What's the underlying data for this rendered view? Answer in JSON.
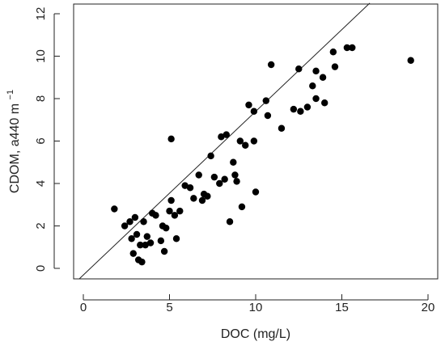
{
  "chart_data": {
    "type": "scatter",
    "title": "",
    "xlabel": "DOC (mg/L)",
    "ylabel_main": "CDOM, a440 m",
    "ylabel_superscript": "−1",
    "xlim": [
      0,
      21
    ],
    "ylim": [
      -0.5,
      12.5
    ],
    "xticks": [
      0,
      5,
      10,
      15,
      20
    ],
    "xtick_labels": [
      "0",
      "5",
      "10",
      "15",
      "20"
    ],
    "yticks": [
      0,
      2,
      4,
      6,
      8,
      10,
      12
    ],
    "ytick_labels": [
      "0",
      "2",
      "4",
      "6",
      "8",
      "10",
      "12"
    ],
    "grid": false,
    "points": [
      [
        1.8,
        2.8
      ],
      [
        2.4,
        2.0
      ],
      [
        2.7,
        2.2
      ],
      [
        2.8,
        1.4
      ],
      [
        2.9,
        0.7
      ],
      [
        3.0,
        2.4
      ],
      [
        3.1,
        1.6
      ],
      [
        3.2,
        0.4
      ],
      [
        3.3,
        1.1
      ],
      [
        3.4,
        0.3
      ],
      [
        3.5,
        2.2
      ],
      [
        3.6,
        1.1
      ],
      [
        3.7,
        1.5
      ],
      [
        3.9,
        1.2
      ],
      [
        4.0,
        2.6
      ],
      [
        4.2,
        2.5
      ],
      [
        4.5,
        1.3
      ],
      [
        4.6,
        2.0
      ],
      [
        4.7,
        0.8
      ],
      [
        4.8,
        1.9
      ],
      [
        5.0,
        2.7
      ],
      [
        5.1,
        3.2
      ],
      [
        5.1,
        6.1
      ],
      [
        5.3,
        2.5
      ],
      [
        5.4,
        1.4
      ],
      [
        5.6,
        2.7
      ],
      [
        5.9,
        3.9
      ],
      [
        6.2,
        3.8
      ],
      [
        6.4,
        3.3
      ],
      [
        6.7,
        4.4
      ],
      [
        6.9,
        3.2
      ],
      [
        7.0,
        3.5
      ],
      [
        7.2,
        3.4
      ],
      [
        7.4,
        5.3
      ],
      [
        7.6,
        4.3
      ],
      [
        7.9,
        4.0
      ],
      [
        8.0,
        6.2
      ],
      [
        8.2,
        4.2
      ],
      [
        8.3,
        6.3
      ],
      [
        8.5,
        2.2
      ],
      [
        8.7,
        5.0
      ],
      [
        8.8,
        4.4
      ],
      [
        8.9,
        4.1
      ],
      [
        9.1,
        6.0
      ],
      [
        9.2,
        2.9
      ],
      [
        9.4,
        5.8
      ],
      [
        9.6,
        7.7
      ],
      [
        9.9,
        6.0
      ],
      [
        9.9,
        7.4
      ],
      [
        10.0,
        3.6
      ],
      [
        10.6,
        7.9
      ],
      [
        10.7,
        7.2
      ],
      [
        10.9,
        9.6
      ],
      [
        11.5,
        6.6
      ],
      [
        12.2,
        7.5
      ],
      [
        12.5,
        9.4
      ],
      [
        12.6,
        7.4
      ],
      [
        13.0,
        7.6
      ],
      [
        13.3,
        8.6
      ],
      [
        13.5,
        9.3
      ],
      [
        13.5,
        8.0
      ],
      [
        13.9,
        9.0
      ],
      [
        14.0,
        7.8
      ],
      [
        14.5,
        10.2
      ],
      [
        14.6,
        9.5
      ],
      [
        15.3,
        10.4
      ],
      [
        15.6,
        10.4
      ],
      [
        19.0,
        9.8
      ]
    ],
    "fit_line": {
      "slope": 0.771,
      "intercept": -0.313
    }
  }
}
